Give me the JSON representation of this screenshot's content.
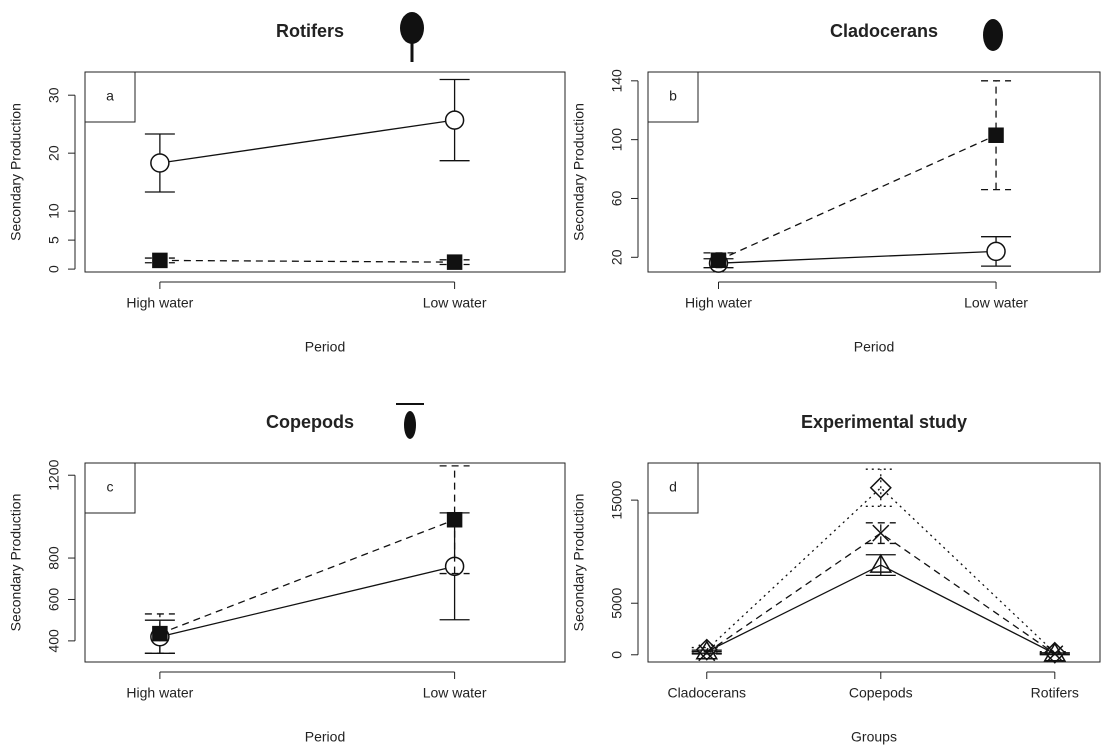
{
  "chart_data": [
    {
      "type": "line",
      "title": "Rotifers",
      "panel_label": "a",
      "xlabel": "Period",
      "ylabel": "Secondary Production",
      "categories": [
        "High water",
        "Low water"
      ],
      "ylim": [
        -0.5,
        34
      ],
      "yticks": [
        0,
        5,
        10,
        20,
        30
      ],
      "series": [
        {
          "color": "#111111",
          "marker": "circle-open",
          "dash": "solid",
          "values": [
            18.3,
            25.7
          ],
          "errors": [
            5,
            7
          ]
        },
        {
          "color": "#111111",
          "marker": "square",
          "dash": "dashed",
          "values": [
            1.5,
            1.2
          ],
          "errors": [
            0.4,
            0.4
          ]
        }
      ]
    },
    {
      "type": "line",
      "title": "Cladocerans",
      "panel_label": "b",
      "xlabel": "Period",
      "ylabel": "Secondary Production",
      "categories": [
        "High water",
        "Low water"
      ],
      "ylim": [
        10,
        146
      ],
      "yticks": [
        20,
        60,
        100,
        140
      ],
      "series": [
        {
          "color": "#111111",
          "marker": "circle-open",
          "dash": "solid",
          "values": [
            16,
            24
          ],
          "errors": [
            3,
            10
          ]
        },
        {
          "color": "#111111",
          "marker": "square",
          "dash": "dashed",
          "values": [
            18,
            103
          ],
          "errors": [
            5,
            37
          ]
        }
      ]
    },
    {
      "type": "line",
      "title": "Copepods",
      "panel_label": "c",
      "xlabel": "Period",
      "ylabel": "Secondary Production",
      "categories": [
        "High water",
        "Low water"
      ],
      "ylim": [
        298,
        1259
      ],
      "yticks": [
        400,
        600,
        800,
        1200
      ],
      "series": [
        {
          "color": "#111111",
          "marker": "circle-open",
          "dash": "solid",
          "values": [
            420,
            760
          ],
          "errors": [
            80,
            258
          ]
        },
        {
          "color": "#111111",
          "marker": "square",
          "dash": "dashed",
          "values": [
            435,
            985
          ],
          "errors": [
            95,
            260
          ]
        }
      ]
    },
    {
      "type": "line",
      "title": "Experimental study",
      "panel_label": "d",
      "xlabel": "Groups",
      "ylabel": "Secondary Production",
      "categories": [
        "Cladocerans",
        "Copepods",
        "Rotifers"
      ],
      "ylim": [
        -700,
        18600
      ],
      "yticks": [
        0,
        5000,
        15000
      ],
      "series": [
        {
          "color": "#111111",
          "marker": "triangle-open",
          "dash": "solid",
          "values": [
            300,
            8700,
            100
          ],
          "errors": [
            150,
            1000,
            80
          ]
        },
        {
          "color": "#111111",
          "marker": "x",
          "dash": "dashed",
          "values": [
            200,
            11800,
            100
          ],
          "errors": [
            120,
            1000,
            80
          ]
        },
        {
          "color": "#111111",
          "marker": "diamond-open",
          "dash": "dotted",
          "values": [
            500,
            16200,
            200
          ],
          "errors": [
            200,
            1800,
            100
          ]
        }
      ]
    }
  ]
}
